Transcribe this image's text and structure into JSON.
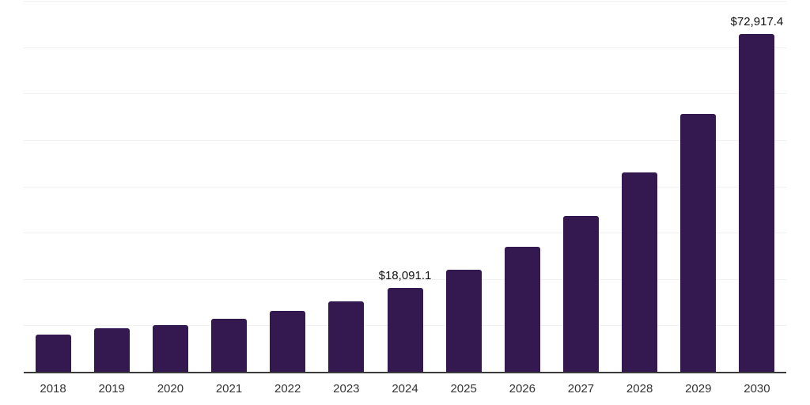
{
  "chart_data": {
    "type": "bar",
    "title": "",
    "xlabel": "",
    "ylabel": "",
    "categories": [
      "2018",
      "2019",
      "2020",
      "2021",
      "2022",
      "2023",
      "2024",
      "2025",
      "2026",
      "2027",
      "2028",
      "2029",
      "2030"
    ],
    "values": [
      8000,
      9400,
      10050,
      11400,
      13100,
      15150,
      18091.1,
      21950,
      26900,
      33550,
      42900,
      55600,
      72917.4
    ],
    "data_labels": [
      {
        "category": "2024",
        "text": "$18,091.1"
      },
      {
        "category": "2030",
        "text": "$72,917.4"
      }
    ],
    "ylim": [
      0,
      80000
    ],
    "gridline_step": 10000,
    "grid": true,
    "y_axis_labels_visible": false,
    "legend_position": "none",
    "colors": {
      "bar": "#341950",
      "axis": "#3B3B3B",
      "gridline": "#F0F0F0",
      "data_label": "#111111",
      "tick_label": "#333333",
      "background": "#FFFFFF"
    }
  }
}
